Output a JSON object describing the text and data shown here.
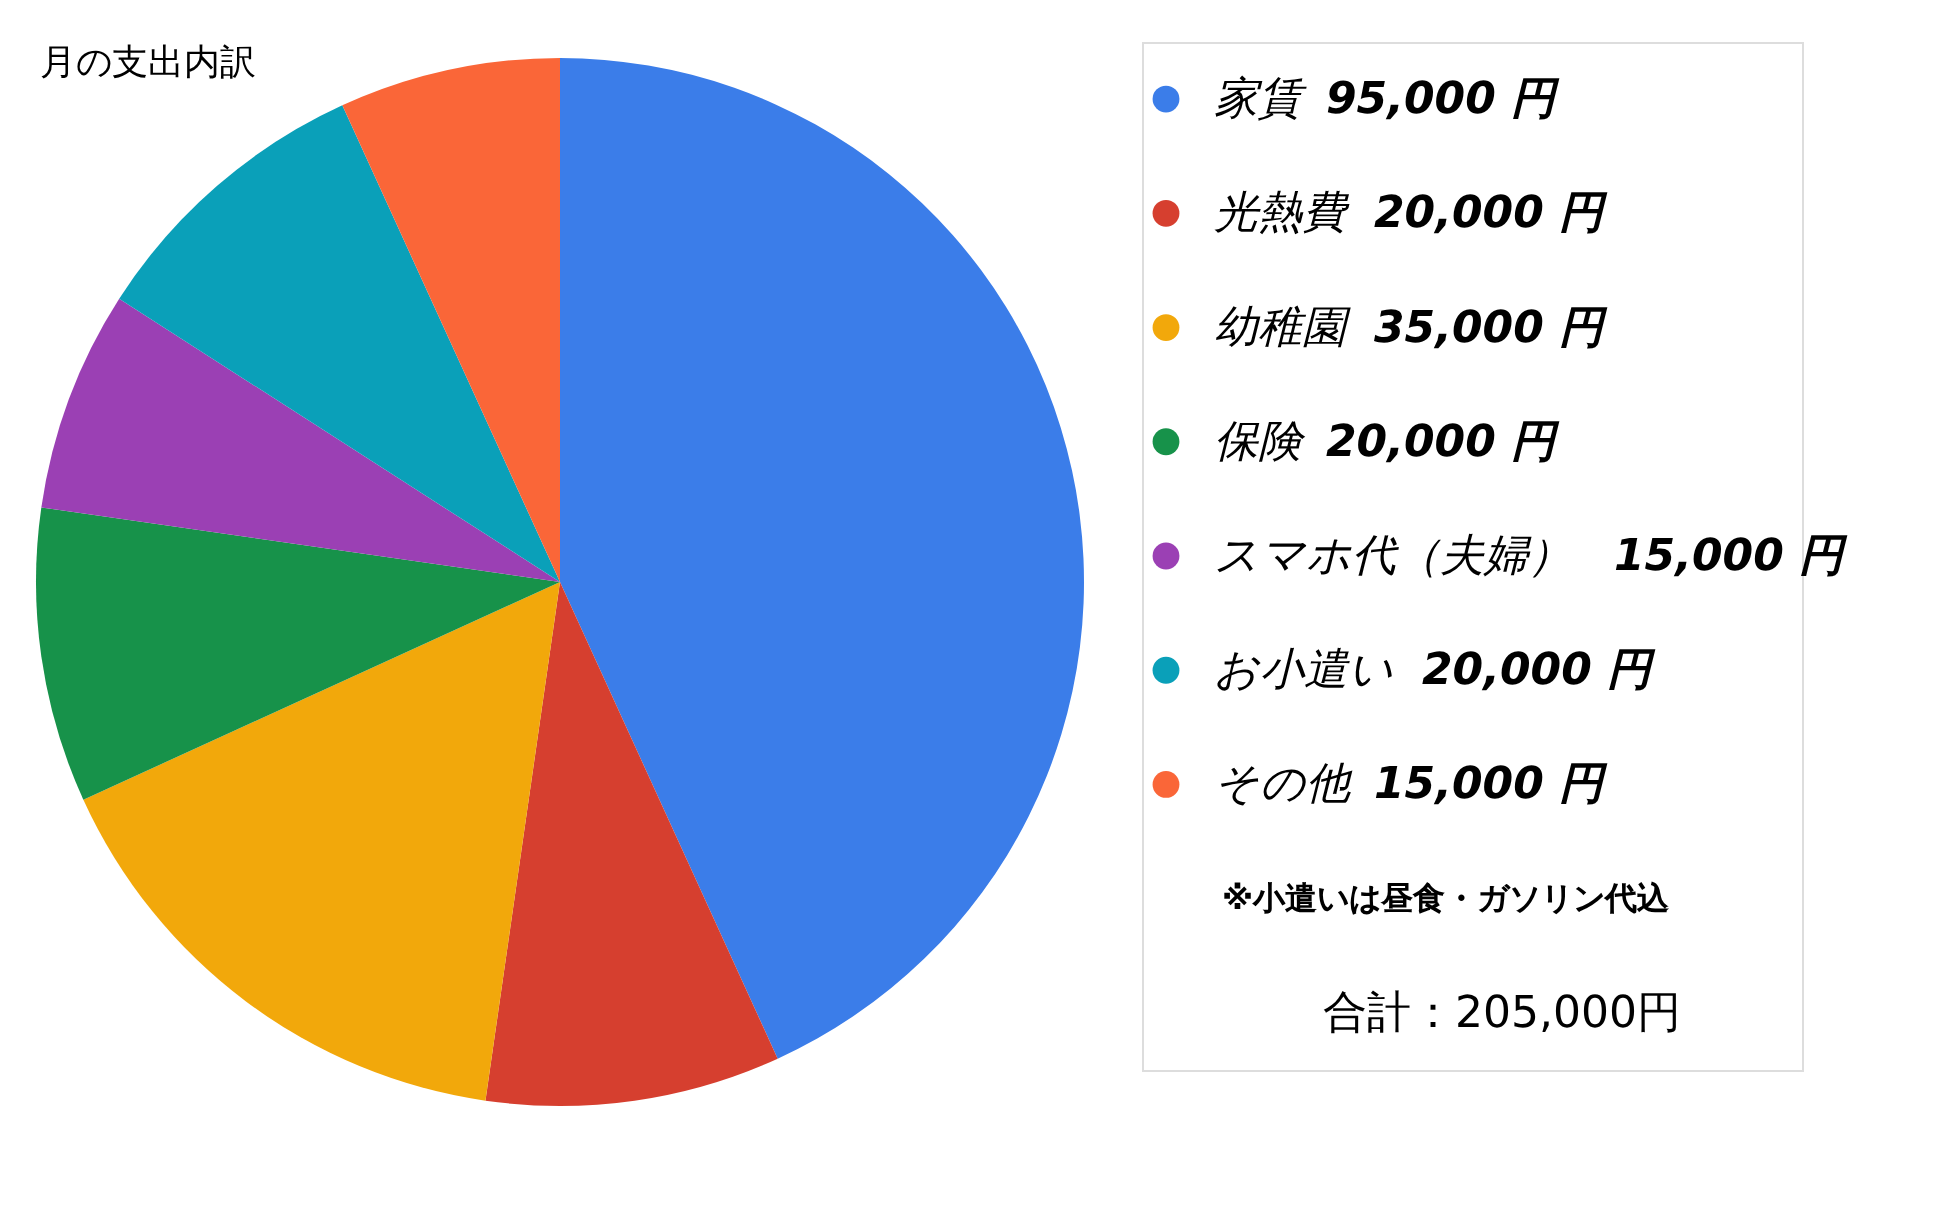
{
  "chart_data": {
    "type": "pie",
    "title": "月の支出内訳",
    "categories": [
      "家賃",
      "光熱費",
      "幼稚園",
      "保険",
      "スマホ代（夫婦）",
      "お小遣い",
      "その他"
    ],
    "values": [
      95000,
      20000,
      35000,
      20000,
      15000,
      20000,
      15000
    ],
    "value_labels": [
      "95,000 円",
      "20,000 円",
      "35,000 円",
      "20,000 円",
      "15,000 円",
      "20,000 円",
      "15,000 円"
    ],
    "colors": [
      "#3b7de9",
      "#d63f2f",
      "#f2a80b",
      "#17924a",
      "#9b40b4",
      "#0aa0b9",
      "#fa6638"
    ],
    "legend": "right",
    "annotations": [
      "※小遣いは昼食・ガソリン代込",
      "合計：205,000円"
    ]
  }
}
